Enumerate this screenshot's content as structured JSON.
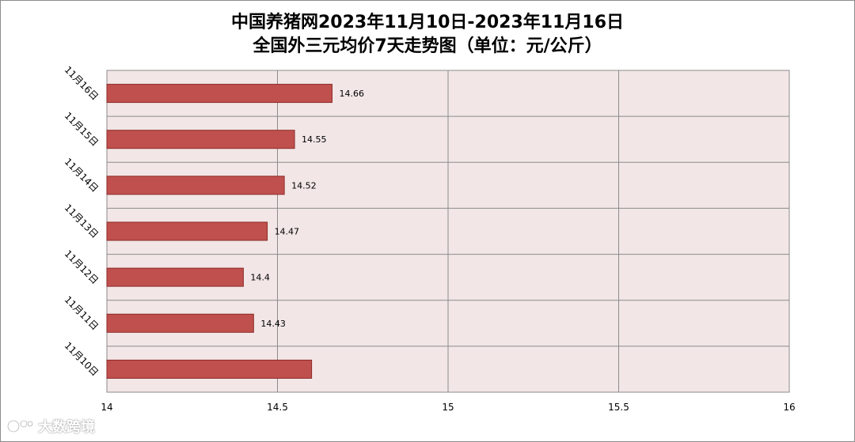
{
  "title_line1": "中国养猪网2023年11月10日-2023年11月16日",
  "title_line2": "全国外三元均价7天走势图（单位：元/公斤）",
  "watermark": "大数跨境",
  "colors": {
    "bar_fill": "#c0504d",
    "bar_stroke": "#8b2b28",
    "plot_bg": "#f2e6e6",
    "grid": "#8c8c8c"
  },
  "chart_data": {
    "type": "bar",
    "orientation": "horizontal",
    "categories": [
      "11月16日",
      "11月15日",
      "11月14日",
      "11月13日",
      "11月12日",
      "11月11日",
      "11月10日"
    ],
    "values": [
      14.66,
      14.55,
      14.52,
      14.47,
      14.4,
      14.43,
      14.6
    ],
    "data_labels": [
      "14.66",
      "14.55",
      "14.52",
      "14.47",
      "14.4",
      "14.43",
      ""
    ],
    "xlim": [
      14,
      16
    ],
    "x_ticks": [
      "14",
      "14.5",
      "15",
      "15.5",
      "16"
    ],
    "grid": true,
    "legend": "none"
  }
}
